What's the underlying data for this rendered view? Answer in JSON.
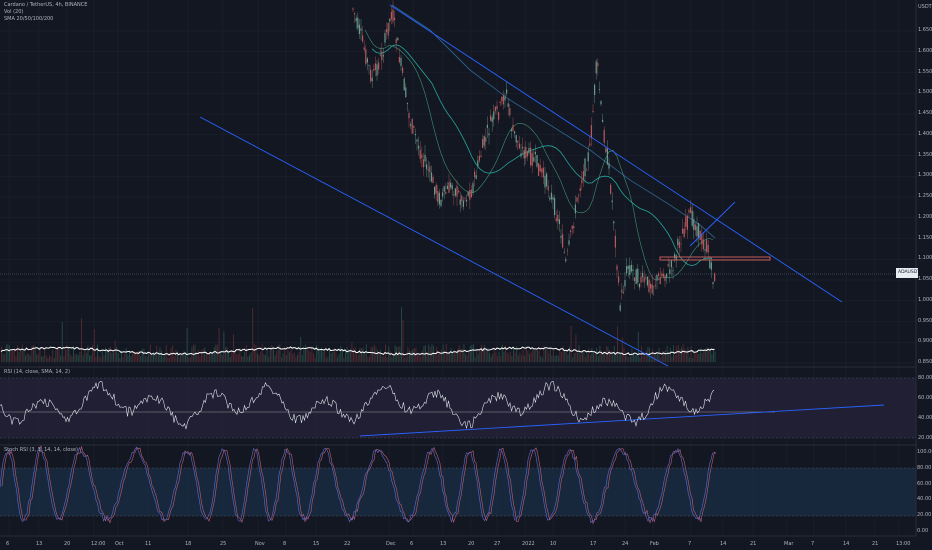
{
  "header": {
    "symbol_line": "Cardano / TetherUS, 4h, BINANCE",
    "vol_line": "Vol (20)",
    "sma_line": "SMA 20/50/100/200"
  },
  "price_axis": {
    "unit": "USDT",
    "ticks": [
      "1.650",
      "1.600",
      "1.550",
      "1.500",
      "1.450",
      "1.400",
      "1.350",
      "1.300",
      "1.250",
      "1.200",
      "1.150",
      "1.100",
      "1.050",
      "1.000",
      "0.950",
      "0.900",
      "0.850"
    ],
    "current_symbol": "ADAUSDT",
    "current_price": "1.045"
  },
  "rsi_panel": {
    "label": "RSI (14, close, SMA, 14, 2)",
    "ticks": [
      "80.00",
      "60.00",
      "40.00",
      "20.00"
    ]
  },
  "stoch_panel": {
    "label": "Stoch RSI (3, 3, 14, 14, close)",
    "ticks": [
      "100.00",
      "80.00",
      "60.00",
      "40.00",
      "20.00",
      "0.00"
    ]
  },
  "time_axis": [
    "6",
    "13",
    "20",
    "12:00",
    "Oct",
    "11",
    "18",
    "25",
    "Nov",
    "8",
    "15",
    "22",
    "Dec",
    "6",
    "13",
    "20",
    "27",
    "2022",
    "10",
    "17",
    "24",
    "Feb",
    "7",
    "14",
    "21",
    "Mar",
    "7",
    "14",
    "21",
    "13:00"
  ],
  "colors": {
    "background": "#131722",
    "candle_up": "#6b9c8e",
    "candle_down": "#b75a5e",
    "trendline": "#2962ff",
    "sma_teal": "#26a69a",
    "sma_blue": "#2c5f8a",
    "rsi_line": "#e0e3eb",
    "rsi_band": "#7e57c2",
    "stoch_k": "#5b6bd1",
    "stoch_d": "#c25e6e",
    "support_box": "#c65b5b"
  }
}
